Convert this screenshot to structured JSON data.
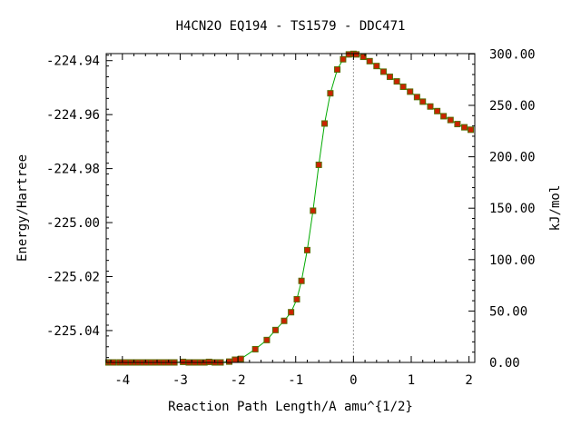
{
  "chart_data": {
    "type": "scatter",
    "title": "H4CN2O   EQ194 - TS1579 - DDC471",
    "xlabel": "Reaction Path Length/A amu^{1/2}",
    "ylabel": "Energy/Hartree",
    "y2label": "kJ/mol",
    "xlim": [
      -4.28,
      2.1
    ],
    "ylim": [
      -225.0518,
      -224.9374
    ],
    "y2_zero_energy": -225.0518,
    "x_ticks": [
      -4,
      -3,
      -2,
      -1,
      0,
      1,
      2
    ],
    "x_tick_labels": [
      "-4",
      "-3",
      "-2",
      "-1",
      "0",
      "1",
      "2"
    ],
    "y_ticks": [
      -224.94,
      -224.96,
      -224.98,
      -225.0,
      -225.02,
      -225.04
    ],
    "y_tick_labels": [
      "-224.94",
      "-224.96",
      "-224.98",
      "-225.00",
      "-225.02",
      "-225.04"
    ],
    "y2_ticks": [
      300,
      250,
      200,
      150,
      100,
      50,
      0
    ],
    "y2_tick_labels": [
      "300.00",
      "250.00",
      "200.00",
      "150.00",
      "100.00",
      "50.00",
      "0.00"
    ],
    "ts_x": 0.0,
    "grid": false,
    "colors": {
      "line": "#00aa00",
      "marker": "#cc2200",
      "marker_edge": "#556b00",
      "ts_line": "#999999",
      "axes": "#000000"
    },
    "series": [
      {
        "x": [
          -4.24,
          -4.2,
          -4.16,
          -4.05,
          -4.0,
          -3.95,
          -3.85,
          -3.78,
          -3.72,
          -3.65,
          -3.58,
          -3.5,
          -3.42,
          -3.35,
          -3.28,
          -3.2,
          -3.1,
          -2.95,
          -2.85,
          -2.75,
          -2.65,
          -2.58,
          -2.5,
          -2.4,
          -2.3,
          -2.15,
          -2.05,
          -1.95,
          -1.7,
          -1.5,
          -1.35,
          -1.2,
          -1.08,
          -0.98,
          -0.9,
          -0.8,
          -0.7,
          -0.6,
          -0.5,
          -0.4,
          -0.28,
          -0.18,
          -0.08,
          0.0,
          0.05,
          0.17,
          0.28,
          0.4,
          0.52,
          0.63,
          0.75,
          0.86,
          0.98,
          1.1,
          1.2,
          1.33,
          1.45,
          1.56,
          1.68,
          1.8,
          1.92,
          2.03
        ],
        "y": [
          -225.0518,
          -225.0518,
          -225.0518,
          -225.0518,
          -225.0518,
          -225.0518,
          -225.0518,
          -225.0518,
          -225.0518,
          -225.0518,
          -225.0518,
          -225.0518,
          -225.0518,
          -225.0518,
          -225.0518,
          -225.0518,
          -225.0518,
          -225.0516,
          -225.0518,
          -225.0518,
          -225.0518,
          -225.0518,
          -225.0516,
          -225.0518,
          -225.0518,
          -225.0515,
          -225.0508,
          -225.0505,
          -225.0469,
          -225.0435,
          -225.0398,
          -225.0364,
          -225.0332,
          -225.0284,
          -225.0216,
          -225.0102,
          -224.9956,
          -224.9786,
          -224.9633,
          -224.9521,
          -224.9433,
          -224.9395,
          -224.9377,
          -224.9375,
          -224.9377,
          -224.9386,
          -224.9402,
          -224.942,
          -224.9441,
          -224.946,
          -224.9477,
          -224.9497,
          -224.9515,
          -224.9535,
          -224.9552,
          -224.957,
          -224.9587,
          -224.9606,
          -224.962,
          -224.9635,
          -224.9647,
          -224.9656
        ]
      }
    ]
  }
}
